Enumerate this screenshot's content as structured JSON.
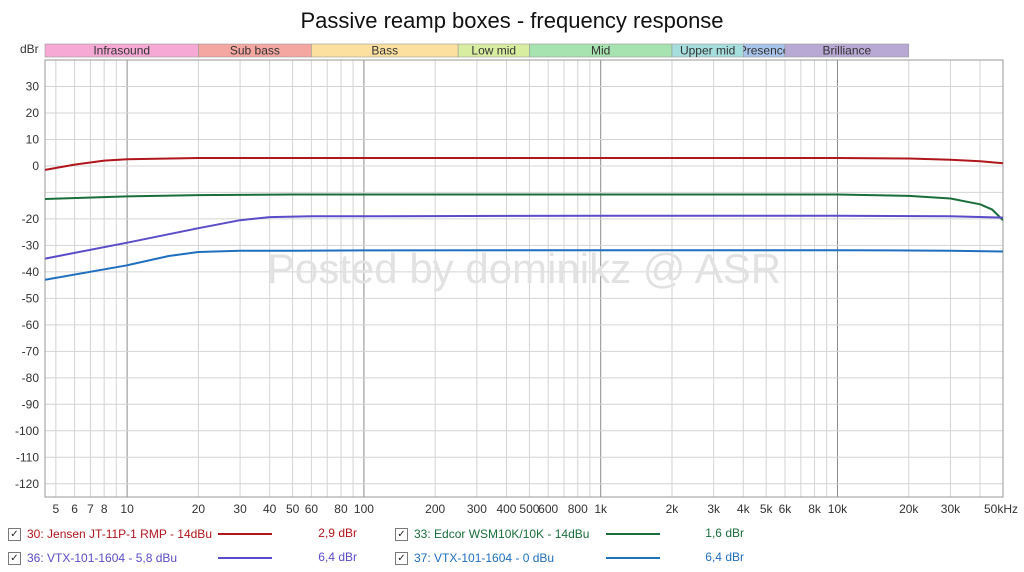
{
  "chart_data": {
    "type": "line",
    "title": "Passive reamp boxes - frequency response",
    "ylabel": "dBr",
    "xlabel": "",
    "x_scale": "log",
    "xlim": [
      4.5,
      50000
    ],
    "ylim": [
      -125,
      40
    ],
    "grid": true,
    "y_ticks": [
      30,
      20,
      10,
      0,
      -20,
      -30,
      -40,
      -50,
      -60,
      -70,
      -80,
      -90,
      -100,
      -110,
      -120
    ],
    "y_tick_labels": [
      "30",
      "20",
      "10",
      "0",
      "-20",
      "-30",
      "-40",
      "-50",
      "-60",
      "-70",
      "-80",
      "-90",
      "-100",
      "-110",
      "-120"
    ],
    "x_ticks": [
      5,
      6,
      7,
      8,
      10,
      20,
      30,
      40,
      50,
      60,
      80,
      100,
      200,
      300,
      400,
      500,
      600,
      800,
      1000,
      2000,
      3000,
      4000,
      5000,
      6000,
      8000,
      10000,
      20000,
      30000,
      50000
    ],
    "x_tick_labels": [
      "5",
      "6",
      "7",
      "8",
      "10",
      "20",
      "30",
      "40",
      "50",
      "60",
      "80",
      "100",
      "200",
      "300",
      "400",
      "500",
      "600",
      "800",
      "1k",
      "2k",
      "3k",
      "4k",
      "5k",
      "6k",
      "8k",
      "10k",
      "20k",
      "30k",
      "50kHz"
    ],
    "bands": [
      {
        "name": "Infrasound",
        "from": 4.5,
        "to": 20,
        "color": "#f5a9d4"
      },
      {
        "name": "Sub bass",
        "from": 20,
        "to": 60,
        "color": "#f4a6a0"
      },
      {
        "name": "Bass",
        "from": 60,
        "to": 250,
        "color": "#fbe0a0"
      },
      {
        "name": "Low mid",
        "from": 250,
        "to": 500,
        "color": "#d8eda0"
      },
      {
        "name": "Mid",
        "from": 500,
        "to": 2000,
        "color": "#a6e3b0"
      },
      {
        "name": "Upper mid",
        "from": 2000,
        "to": 4000,
        "color": "#a6dedd"
      },
      {
        "name": "Presence",
        "from": 4000,
        "to": 6000,
        "color": "#a9c4ea"
      },
      {
        "name": "Brilliance",
        "from": 6000,
        "to": 20000,
        "color": "#b8a8d4"
      }
    ],
    "watermark": "Posted by dominikz @ ASR",
    "series": [
      {
        "name": "30: Jensen JT-11P-1 RMP - 14dBu",
        "color": "#b0161c",
        "legend_value": "2,9 dBr",
        "x": [
          4.5,
          6,
          8,
          10,
          20,
          50,
          100,
          1000,
          10000,
          20000,
          30000,
          40000,
          50000
        ],
        "y": [
          -1.5,
          0.5,
          2.0,
          2.5,
          3.0,
          3.0,
          3.0,
          3.0,
          3.0,
          2.8,
          2.3,
          1.8,
          1.0
        ]
      },
      {
        "name": "33: Edcor WSM10K/10K - 14dBu",
        "color": "#1a6e3a",
        "legend_value": "1,6 dBr",
        "x": [
          4.5,
          10,
          20,
          50,
          100,
          1000,
          10000,
          20000,
          30000,
          40000,
          45000,
          50000
        ],
        "y": [
          -12.5,
          -11.5,
          -11.0,
          -10.8,
          -10.8,
          -10.8,
          -10.8,
          -11.3,
          -12.3,
          -14.5,
          -16.5,
          -20.5
        ]
      },
      {
        "name": "36: VTX-101-1604 - 5,8 dBu",
        "color": "#5a4cc8",
        "legend_value": "6,4 dBr",
        "x": [
          4.5,
          10,
          20,
          30,
          40,
          60,
          100,
          1000,
          10000,
          30000,
          50000
        ],
        "y": [
          -35.0,
          -29.0,
          -23.5,
          -20.5,
          -19.3,
          -19.0,
          -19.0,
          -18.8,
          -18.8,
          -19.0,
          -19.5
        ]
      },
      {
        "name": "37: VTX-101-1604 - 0 dBu",
        "color": "#1f6fbf",
        "legend_value": "6,4 dBr",
        "x": [
          4.5,
          10,
          15,
          20,
          30,
          50,
          100,
          1000,
          10000,
          30000,
          50000
        ],
        "y": [
          -43.0,
          -37.5,
          -34.0,
          -32.5,
          -32.0,
          -32.0,
          -31.9,
          -31.8,
          -31.8,
          -32.0,
          -32.3
        ]
      }
    ]
  }
}
